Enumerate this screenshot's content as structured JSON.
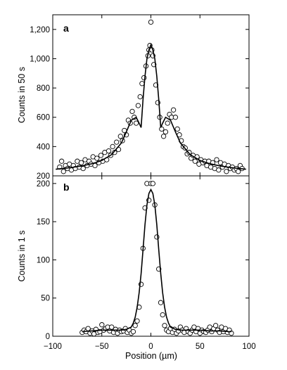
{
  "chart_data": [
    {
      "type": "scatter",
      "panel": "a",
      "ylabel": "Counts in 50 s",
      "xlabel": "Position (µm)",
      "xlim": [
        -100,
        100
      ],
      "ylim": [
        200,
        1300
      ],
      "yticks": [
        200,
        400,
        600,
        800,
        1000,
        1200
      ],
      "ytick_labels": [
        "200",
        "400",
        "600",
        "800",
        "1,000",
        "1,200"
      ],
      "grid": false,
      "series": [
        {
          "kind": "points",
          "x": [
            -93,
            -91,
            -89,
            -87,
            -85,
            -83,
            -81,
            -79,
            -77,
            -75,
            -73,
            -71,
            -69,
            -67,
            -65,
            -63,
            -61,
            -59,
            -57,
            -55,
            -53,
            -51,
            -49,
            -47,
            -45,
            -43,
            -41,
            -39,
            -37,
            -35,
            -33,
            -31,
            -29,
            -27,
            -25,
            -23,
            -21,
            -19,
            -17,
            -15,
            -13,
            -11,
            -9,
            -7,
            -5,
            -3,
            -2,
            -1,
            0,
            1,
            2,
            3,
            5,
            7,
            9,
            11,
            13,
            15,
            17,
            19,
            21,
            23,
            25,
            27,
            29,
            31,
            33,
            35,
            37,
            39,
            41,
            43,
            45,
            47,
            49,
            51,
            53,
            55,
            57,
            59,
            61,
            63,
            65,
            67,
            69,
            71,
            73,
            75,
            77,
            79,
            81,
            83,
            85,
            87,
            89,
            91,
            93
          ],
          "y": [
            260,
            300,
            230,
            270,
            250,
            280,
            240,
            270,
            250,
            300,
            260,
            290,
            250,
            310,
            270,
            300,
            280,
            330,
            270,
            320,
            290,
            340,
            300,
            360,
            310,
            370,
            340,
            400,
            360,
            430,
            380,
            470,
            440,
            510,
            480,
            580,
            560,
            640,
            600,
            560,
            680,
            740,
            830,
            870,
            950,
            1020,
            1060,
            1090,
            1250,
            1060,
            1020,
            960,
            820,
            700,
            600,
            520,
            470,
            500,
            560,
            620,
            600,
            650,
            600,
            520,
            480,
            440,
            400,
            390,
            350,
            360,
            320,
            340,
            300,
            330,
            280,
            310,
            290,
            300,
            270,
            300,
            260,
            290,
            250,
            310,
            240,
            290,
            260,
            280,
            230,
            270,
            250,
            260,
            240,
            250,
            230,
            270,
            250
          ]
        },
        {
          "kind": "fit-line",
          "x": [
            -97,
            -90,
            -80,
            -70,
            -60,
            -50,
            -40,
            -30,
            -25,
            -20,
            -15,
            -12,
            -10,
            -8,
            -6,
            -4,
            -2,
            0,
            2,
            4,
            6,
            8,
            10,
            12,
            15,
            20,
            25,
            30,
            40,
            50,
            60,
            70,
            80,
            90,
            97
          ],
          "y": [
            245,
            250,
            258,
            268,
            283,
            305,
            345,
            425,
            500,
            580,
            600,
            560,
            530,
            720,
            880,
            1000,
            1060,
            1095,
            1060,
            1000,
            880,
            720,
            530,
            560,
            600,
            580,
            500,
            425,
            345,
            305,
            283,
            268,
            258,
            250,
            245
          ]
        }
      ]
    },
    {
      "type": "scatter",
      "panel": "b",
      "ylabel": "Counts in 1 s",
      "xlabel": "Position (µm)",
      "xlim": [
        -100,
        100
      ],
      "ylim": [
        0,
        210
      ],
      "yticks": [
        0,
        50,
        100,
        150,
        200
      ],
      "ytick_labels": [
        "0",
        "50",
        "100",
        "150",
        "200"
      ],
      "xticks": [
        -100,
        -50,
        0,
        50,
        100
      ],
      "xtick_labels": [
        "−100",
        "−50",
        "0",
        "50",
        "100"
      ],
      "grid": false,
      "series": [
        {
          "kind": "points",
          "x": [
            -70,
            -68,
            -66,
            -64,
            -62,
            -60,
            -58,
            -56,
            -54,
            -52,
            -50,
            -48,
            -46,
            -44,
            -42,
            -40,
            -38,
            -36,
            -34,
            -32,
            -30,
            -28,
            -26,
            -24,
            -22,
            -20,
            -18,
            -16,
            -14,
            -12,
            -10,
            -8,
            -6,
            -4,
            -2,
            0,
            2,
            4,
            6,
            8,
            10,
            12,
            14,
            16,
            18,
            20,
            22,
            24,
            26,
            28,
            30,
            32,
            34,
            36,
            38,
            40,
            42,
            44,
            46,
            48,
            50,
            52,
            54,
            56,
            58,
            60,
            62,
            64,
            66,
            68,
            70,
            72,
            74,
            76,
            78,
            80,
            82
          ],
          "y": [
            5,
            8,
            6,
            10,
            4,
            7,
            3,
            9,
            5,
            6,
            15,
            8,
            10,
            12,
            7,
            12,
            5,
            9,
            4,
            8,
            6,
            7,
            10,
            5,
            8,
            4,
            6,
            14,
            20,
            38,
            68,
            115,
            168,
            200,
            178,
            200,
            200,
            172,
            130,
            88,
            44,
            28,
            14,
            8,
            6,
            10,
            5,
            9,
            4,
            7,
            12,
            8,
            5,
            10,
            6,
            4,
            8,
            12,
            6,
            10,
            4,
            8,
            6,
            5,
            8,
            12,
            6,
            10,
            14,
            8,
            5,
            12,
            6,
            10,
            5,
            8,
            4
          ]
        },
        {
          "kind": "fit-line",
          "x": [
            -70,
            -60,
            -50,
            -40,
            -30,
            -25,
            -20,
            -18,
            -16,
            -14,
            -12,
            -10,
            -8,
            -6,
            -4,
            -2,
            0,
            2,
            4,
            6,
            8,
            10,
            12,
            14,
            16,
            18,
            20,
            25,
            30,
            40,
            50,
            60,
            70,
            80,
            82
          ],
          "y": [
            6,
            7,
            8,
            8,
            8,
            9,
            12,
            17,
            25,
            38,
            57,
            82,
            113,
            146,
            172,
            187,
            192,
            187,
            172,
            146,
            113,
            82,
            57,
            38,
            25,
            17,
            12,
            9,
            8,
            8,
            8,
            7,
            7,
            6,
            6
          ]
        }
      ]
    }
  ]
}
